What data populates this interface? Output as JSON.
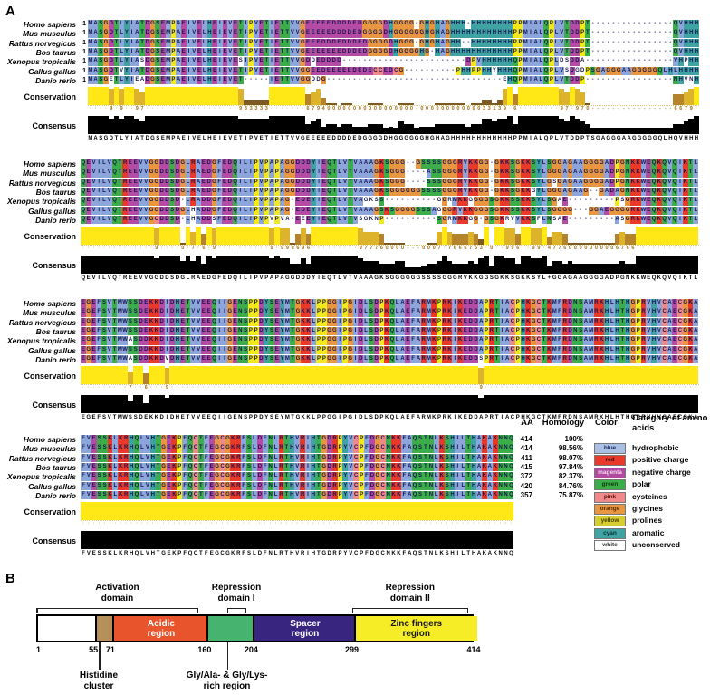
{
  "panel_a": {
    "label": "A"
  },
  "panel_b_label": "B",
  "species": [
    {
      "name": "Homo sapiens",
      "aa": "414",
      "homology": "100%"
    },
    {
      "name": "Mus musculus",
      "aa": "414",
      "homology": "98.56%"
    },
    {
      "name": "Rattus norvegicus",
      "aa": "411",
      "homology": "98.07%"
    },
    {
      "name": "Bos taurus",
      "aa": "415",
      "homology": "97.84%"
    },
    {
      "name": "Xenopus tropicalis",
      "aa": "372",
      "homology": "82.37%"
    },
    {
      "name": "Gallus gallus",
      "aa": "420",
      "homology": "84.76%"
    },
    {
      "name": "Danio rerio",
      "aa": "357",
      "homology": "75.87%"
    }
  ],
  "alignment": {
    "conservation_label": "Conservation",
    "consensus_label": "Consensus",
    "blocks": [
      {
        "start_number": "1",
        "sequences": [
          "MASGDTLYIATDGSEMPAEIVELHEIEVETIPVETIETTVVGEEEEEDDDDEDGGGGDHGGGG-GHGHAGHHH-HHHHHHHHPPMIALQPLVTDDPT----------------QVHHH",
          "MASGDTLYIATDGSEMPAEIVELHEIEVETIPVETIETTVVGEEEEEDDDDEDGGGGDHGGGGGGHGHAGHHHHHHHHHHHHPPMIALQPLVTDDPT----------------QVHHH",
          "MASGDTLYIATDGSEMPAEIVELHEIEVETIPVETIETTVVGEEEDDDEDDDEDGGGGDHGGG-GHGHAGHH--HHHHHHHHPPMIALQPLVTDDPT----------------QVHHH",
          "MASGDTLYIATDGSEMPAEIVELHEIEVETIPVETIETTVVGEEEEEEEDDDEDGGGGDHGGGGHG-HAGHHHHHHHHHHHHPPMIALQPLVTDDPT----------------QVHHH",
          "MASGDTLYIASDGSEMPAEIVELHEIEVESIPVETIETTVVGDDEDDDD------------------------DPVHHHHHHQPMIALQPLDSDDA-----------------VHPHH",
          "MASGDTVYIATDGSEMPAEIVELHEIEVETIPVETIETTVVGGEEDEEEEEDEDECCEDCG----------PHHPPHHYHHHQPMIALQPLVSDGDPSGAGGGAAGGGGGQLHLHHHH",
          "MASGETLYIEADGSEMPAEIVELHEIEVET-----IETTVVGGDDG----------------------------------EHQPMIALQPLVTDDP-----------------NHVNH"
        ],
        "consensus": "MASGDTLYIATDGSEMPAEIVELHEIEVETIPVETIETTVVGEEEEEDDDDEDGGGGDHGGGGGGHGHAGHHHHHHHHHHHHPPMIALQPLVTDDPTSGAGGGAAGGGGGQLHQVHHH"
      },
      {
        "start_number": "",
        "sequences": [
          "QEVILVQTREEVVGGDDSDGLRAEDGFEDQILIPVPAPAGGDDDYIEQTLVTVAAAGKSGGG--GSSSSGGGRVKKGG-GKKSGKKSYLSGGAGAAGGGGADPGNKKWEQKQVQIKTL",
          "QEVILVQTREEVVGGDDSDGLRAEDGFEDQILIPVPAPAGGDDDYIEQTLVTVAAAGKSGGG----ASSGGGRVKKGG-GKKSGKKSYLGGGAGAAGGGGADPGNKKWEQKQVQIKTL",
          "QEVILVQTREEVVGGDDSDGLRAEDGFEDQILIPVPAPAGGDDDYIEQTLVTVAAAGKSGGG----SSSGGGRVKKGG-GKKSGKKSYLGSGAGAAGGGGADPGNKKWEQKQVQIKTL",
          "QEVILVQTREEVVGGDDSDGLRAEDGFEDQILIPVPAPAGGDDDYIEQTLVTVAAAGKSGGGGGGSSSSGGGRVKKGG-GKKSGKKGYLGGGAGAAG--GADAGNKKWEQKQVQIKTL",
          "QEVILVQTREEVVGGDDSD-LRADDGFEDQILIPVPAPAG-EDEYIEQTLVTVAGKSS----------GGRMKKGGGGSGKKSSKKSYLSGAE---------PSGRKWEQKQVQIKTL",
          "QEVILVQTREEVVGGDDSDGLHADDGFEDQILIPVPAPAG-EDEYIEQTLVTVAAAGSKSGGGGSSSAGGGRVKKGGGSGKKSSKKSYLSGGGG---GGAEGGGGRKWEQKQVQIKTL",
          "QEVILVQTREEVVGCDDSD-LHADDSFEDQILIPVPVPVA-EEEYIEQTLVTVSGKNP----------SGRMKKGG-GSGKRVVKKSFLNSAE---------ASGRKWEQKQVQIKTL"
        ],
        "consensus": "QEVILVQTREEVVGGDDSDGLRAEDGFEDQILIPVPAPAGGDDDYIEQTLVTVAAAGKSGGGGGGSSSSGGGRVKKGGSGKKSGKKSYL+GGAGAAGGGGADPGNKKWEQKQVQIKTL"
      },
      {
        "start_number": "",
        "sequences": [
          "EGEFSVTMWSSDEKKDIDHETVVEEQIIGENSPPDYSEYMTGKKLPPGGIPGIDLSDPKQLAEFARMKPRKIKEDDAPRTIACPHKGCTKMFRDNSAMRKHLHTHGPRVHVCAECGKA",
          "EGEFSVTMWSSDEKKDIDHETVVEEQIIGENSPPDYSEYMTGKKLPPGGIPGIDLSDPKQLAEFARMKPRKIKEDDAPRTIACPHKGCTKMFRDNSAMRKHLHTHGPRVHVCAECGKA",
          "EGEFSVTMWSSDEKKDIDHETVVEEQIIGENSPPDYSEYMTGKKLPPGGIPGIDLSDPKQLAEFARMKPRKIKEDDAPRTIACPHKGCTKMFRDNSAMRKHLHTHGPRVHVCAECGKA",
          "EGEFSVTMWSSDEKKDIDHETVVEEQIIGENSPPDYSEYMTGKKLPPGGIPGIDLSDPKQLAEFARMKPRKIKEDDAPRTIACPHKGCTKMFRDNSAMRKHLHTHGPRVHVCAECGKA",
          "EGEFSVTMWASDDKKDIDHETVVEEQIIGENSPPDYSEYMTGKKLPPGGIPGIDLSDPKQLAEFARMKPRKIKEDDAPRTIACPHKGCTKMFRDNSAMRKHLHTHGPRVHVCAECGKA",
          "EGEFSVTMWSSDDKKDIDHETVVEEQIIGENSPPDYSEYMTGKKLPPGGIPGIDLSDPKQLAEFARMKPRKIKEDDAPRTIACPHKGCTKMFRDNSAMRKHLHTHGPRVHVCAECGKA",
          "EGEFSVTMWASDDKKDVDHETVVEEQIIGENSPPDYSEYMTGKKLPPGGIPGIDLSDPKQLAEFARMKPRKIKEDDSPRTIACPHKGCTKMFRDNSAMRKHLHTHGPRVHVCAECGKA"
        ],
        "consensus": "EGEFSVTMWSSDEKKDIDHETVVEEQIIGENSPPDYSEYMTGKKLPPGGIPGIDLSDPKQLAEFARMKPRKIKEDDAPRTIACPHKGCTKMFRDNSAMRKHLHTHGPRVHVCAECGKA"
      },
      {
        "start_number": "",
        "show_homology": true,
        "sequences": [
          "FVESSKLKRHQLVHTGEKPFQCTFEGCGKRFSLDFNLRTHVRIHTGDRPYVCPFDGCNKKFAQSTNLKSHILTHAKAKNNQ",
          "FVESSKLKRHQLVHTGEKPFQCTFEGCGKRFSLDFNLRTHVRIHTGDRPYVCPFDGCNKKFAQSTNLKSHILTHAKAKNNQ",
          "FVESSKLKRHQLVHTGEKPFQCTFEGCGKRFSLDFNLRTHVRIHTGDRPYVCPFDGCNKKFAQSTNLKSHILTHAKAKNNQ",
          "FVESSKLKRHQLVHTGEKPFQCTFEGCGKRFSLDFNLRTHVRIHTGDRPYVCPFDGCNKKFAQSTNLKSHILTHAKAKNNQ",
          "FVESSKLKRHQLVHTGEKPFQCTFEGCGKRFSLDFNLRTHVRIHTGDRPYVCPFDGCNKKFAQSTNLKSHILTHAKAKNNQ",
          "FVESSKLKRHQLVHTGEKPFQCTFEGCGKRFSLDFNLRTHVRIHTGDRPYVCPFDGCNKKFAQSTNLKSHILTHAKAKNNQ",
          "FVESSKLKRHQLVHTGEKPFQCTFEGCGKRFSLDFNLRTHVRIHTGDRPYVCPFDGCNKKFAQSTNLKSHILTHAKAKNNQ"
        ],
        "consensus": "FVESSKLKRHQLVHTGEKPFQCTFEGCGKRFSLDFNLRTHVRIHTGDRPYVCPFDGCNKKFAQSTNLKSHILTHAKAKNNQ"
      }
    ]
  },
  "homology_table": {
    "aa_header": "AA",
    "homology_header": "Homology"
  },
  "color_legend": {
    "color_header": "Color",
    "category_header": "Category of amino acids",
    "entries": [
      {
        "swatch": "blue",
        "hex": "#a9c0e4",
        "text_color": "#1c2f66",
        "category": "hydrophobic"
      },
      {
        "swatch": "red",
        "hex": "#e8392b",
        "text_color": "#3c0808",
        "category": "positive charge"
      },
      {
        "swatch": "magenta",
        "hex": "#b14a9f",
        "text_color": "#f3d9f3",
        "category": "negative charge"
      },
      {
        "swatch": "green",
        "hex": "#3cae49",
        "text_color": "#0b3b0f",
        "category": "polar"
      },
      {
        "swatch": "pink",
        "hex": "#f08a8a",
        "text_color": "#5c1111",
        "category": "cysteines"
      },
      {
        "swatch": "orange",
        "hex": "#e8963f",
        "text_color": "#5a2d00",
        "category": "glycines"
      },
      {
        "swatch": "yellow",
        "hex": "#d8cc33",
        "text_color": "#4a4400",
        "category": "prolines"
      },
      {
        "swatch": "cyan",
        "hex": "#3fa3a3",
        "text_color": "#073333",
        "category": "aromatic"
      },
      {
        "swatch": "white",
        "hex": "#ffffff",
        "text_color": "#333333",
        "category": "unconserved"
      }
    ]
  },
  "aa_categories": {
    "colors": {
      "hydrophobic": "#8ca6dc",
      "positive": "#e8392b",
      "negative": "#b44ba4",
      "polar": "#3cae49",
      "cysteines": "#f08a8a",
      "glycines": "#e8963f",
      "prolines": "#f2e81e",
      "aromatic": "#3fa3a3"
    },
    "residues": {
      "hydrophobic": "AVLIMFW",
      "positive": "KR",
      "negative": "DE",
      "polar": "NQST",
      "cysteines": "C",
      "glycines": "G",
      "prolines": "P",
      "aromatic": "HY"
    },
    "conservation_colors": {
      "full": "#ffe815",
      "high": "#dcb32b",
      "mid": "#b5832a",
      "low": "#7d5a22"
    },
    "consensus_bar_color": "#000000"
  },
  "panel_b": {
    "scale_min": 1,
    "scale_max": 414,
    "regions": [
      {
        "label": "",
        "label2": "",
        "start": 1,
        "end": 55,
        "color": "#ffffff",
        "text_color": "#000000"
      },
      {
        "label": "",
        "label2": "",
        "start": 55,
        "end": 71,
        "color": "#b5905a",
        "text_color": "#000000"
      },
      {
        "label": "Acidic",
        "label2": "region",
        "start": 71,
        "end": 160,
        "color": "#e8542c",
        "text_color": "#ffffff"
      },
      {
        "label": "",
        "label2": "",
        "start": 160,
        "end": 204,
        "color": "#46b36e",
        "text_color": "#000000"
      },
      {
        "label": "Spacer",
        "label2": "region",
        "start": 204,
        "end": 299,
        "color": "#372580",
        "text_color": "#ffffff"
      },
      {
        "label": "Zinc fingers",
        "label2": "region",
        "start": 299,
        "end": 414,
        "color": "#f7ed26",
        "text_color": "#1a1a1a"
      }
    ],
    "ticks": [
      {
        "v": "1",
        "at": 1,
        "align": "left"
      },
      {
        "v": "55",
        "at": 55
      },
      {
        "v": "71",
        "at": 71
      },
      {
        "v": "160",
        "at": 160
      },
      {
        "v": "204",
        "at": 204
      },
      {
        "v": "299",
        "at": 299
      },
      {
        "v": "414",
        "at": 414
      }
    ],
    "brackets": [
      {
        "line1": "Activation",
        "line2": "domain",
        "start": 1,
        "end": 154
      },
      {
        "line1": "Repression",
        "line2": "domain I",
        "start": 181,
        "end": 199
      },
      {
        "line1": "Repression",
        "line2": "domain II",
        "start": 299,
        "end": 409
      }
    ],
    "callouts": [
      {
        "line1": "Histidine",
        "line2": "cluster",
        "at": 60
      },
      {
        "line1": "Gly/Ala- & Gly/Lys-",
        "line2": "rich region",
        "at": 181
      }
    ]
  }
}
